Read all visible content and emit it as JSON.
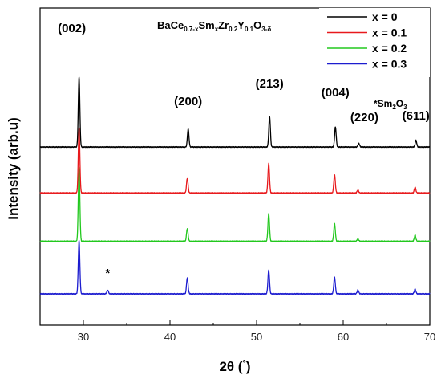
{
  "chart_data": {
    "type": "line",
    "title": {
      "parts": [
        {
          "text": "BaCe",
          "sub": false
        },
        {
          "text": "0.7-x",
          "sub": true
        },
        {
          "text": "Sm",
          "sub": false
        },
        {
          "text": "x",
          "sub": true
        },
        {
          "text": "Zr",
          "sub": false
        },
        {
          "text": "0.2",
          "sub": true
        },
        {
          "text": "Y",
          "sub": false
        },
        {
          "text": "0.1",
          "sub": true
        },
        {
          "text": "O",
          "sub": false
        },
        {
          "text": "3-δ",
          "sub": true
        }
      ]
    },
    "xlabel": "2θ (°)",
    "ylabel": "Intensity (arb.u)",
    "xlim": [
      25,
      70
    ],
    "xticks": [
      30,
      40,
      50,
      60,
      70
    ],
    "y_tick_labels": false,
    "grid": false,
    "legend_position": "top-right",
    "peak_labels": [
      {
        "text": "(002)",
        "x": 29.5
      },
      {
        "text": "(200)",
        "x": 42.1
      },
      {
        "text": "(213)",
        "x": 51.5
      },
      {
        "text": "(004)",
        "x": 59.1
      },
      {
        "text": "(220)",
        "x": 61.8
      },
      {
        "text": "(611)",
        "x": 68.4
      }
    ],
    "impurity_marker": {
      "text": "*",
      "x": 32.8
    },
    "impurity_note": {
      "parts": [
        {
          "text": "*Sm",
          "sub": false
        },
        {
          "text": "2",
          "sub": true
        },
        {
          "text": "O",
          "sub": false
        },
        {
          "text": "3",
          "sub": true
        }
      ]
    },
    "series": [
      {
        "name": "x = 0",
        "color": "#000000",
        "baseline": 3.1,
        "peaks": [
          [
            29.5,
            1.48
          ],
          [
            42.1,
            0.38
          ],
          [
            51.5,
            0.65
          ],
          [
            59.1,
            0.42
          ],
          [
            61.8,
            0.08
          ],
          [
            68.4,
            0.14
          ]
        ]
      },
      {
        "name": "x = 0.1",
        "color": "#e8191c",
        "baseline": 2.13,
        "peaks": [
          [
            29.5,
            1.38
          ],
          [
            42.0,
            0.31
          ],
          [
            51.4,
            0.62
          ],
          [
            59.0,
            0.38
          ],
          [
            61.7,
            0.06
          ],
          [
            68.3,
            0.12
          ]
        ]
      },
      {
        "name": "x = 0.2",
        "color": "#22c81e",
        "baseline": 1.11,
        "peaks": [
          [
            29.5,
            1.56
          ],
          [
            42.0,
            0.27
          ],
          [
            51.4,
            0.58
          ],
          [
            59.0,
            0.37
          ],
          [
            61.7,
            0.05
          ],
          [
            68.3,
            0.13
          ]
        ]
      },
      {
        "name": "x = 0.3",
        "color": "#1c1ccf",
        "baseline": 0.0,
        "peaks": [
          [
            29.5,
            1.12
          ],
          [
            32.8,
            0.08
          ],
          [
            42.0,
            0.34
          ],
          [
            51.4,
            0.5
          ],
          [
            59.0,
            0.35
          ],
          [
            61.7,
            0.08
          ],
          [
            68.3,
            0.1
          ]
        ]
      }
    ]
  }
}
